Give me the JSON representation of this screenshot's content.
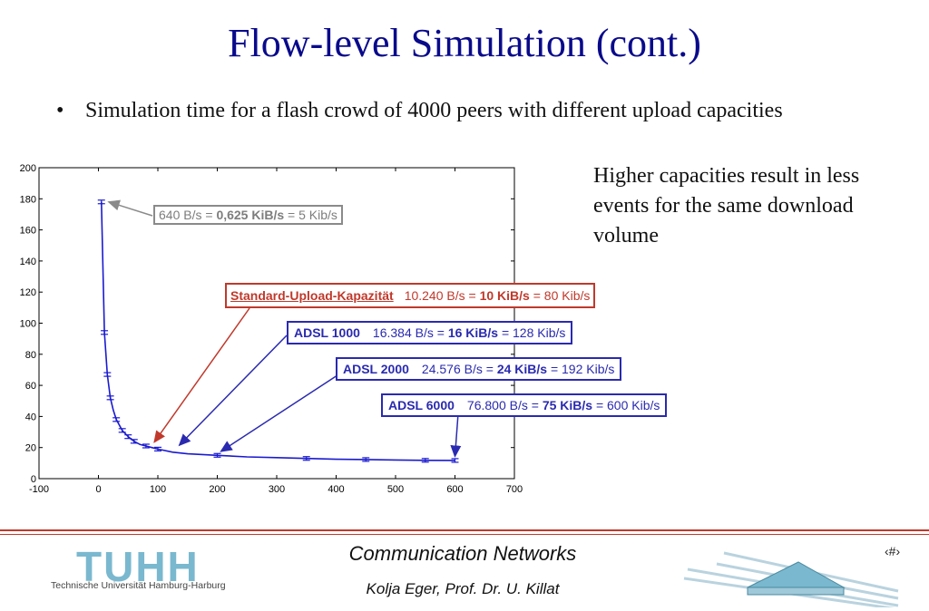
{
  "slide": {
    "title": "Flow-level Simulation (cont.)",
    "bullet_marker": "•",
    "bullet": "Simulation time for a flash crowd of 4000 peers with different upload capacities",
    "note": "Higher capacities result in less events for the same download volume"
  },
  "labels": {
    "l640": {
      "pre": "640 B/s = ",
      "bold": "0,625 KiB/s",
      "post": " = 5 Kib/s"
    },
    "std": {
      "name": "Standard-Upload-Kapazität",
      "pre": "10.240 B/s = ",
      "bold": "10 KiB/s",
      "post": " = 80 Kib/s"
    },
    "adsl1000": {
      "name": "ADSL 1000",
      "pre": "16.384 B/s = ",
      "bold": "16 KiB/s",
      "post": " = 128 Kib/s"
    },
    "adsl2000": {
      "name": "ADSL 2000",
      "pre": "24.576 B/s = ",
      "bold": "24 KiB/s",
      "post": " = 192 Kib/s"
    },
    "adsl6000": {
      "name": "ADSL 6000",
      "pre": "76.800 B/s = ",
      "bold": "75 KiB/s",
      "post": " = 600 Kib/s"
    }
  },
  "footer": {
    "title": "Communication Networks",
    "subtitle": "Kolja Eger, Prof. Dr. U. Killat",
    "page": "‹#›",
    "logo_text": "TUHH",
    "logo_sub": "Technische Universität Hamburg-Harburg"
  },
  "colors": {
    "title": "#0a0a8c",
    "series": "#1a1ad0",
    "highlight": "#c0392b",
    "label_blue": "#2a2ab0",
    "label_gray": "#7d7d7d"
  },
  "chart_data": {
    "type": "line",
    "xlim": [
      -100,
      700
    ],
    "ylim": [
      0,
      200
    ],
    "xticks": [
      -100,
      0,
      100,
      200,
      300,
      400,
      500,
      600,
      700
    ],
    "yticks": [
      0,
      20,
      40,
      60,
      80,
      100,
      120,
      140,
      160,
      180,
      200
    ],
    "grid": false,
    "series": [
      {
        "x": [
          5,
          10,
          15,
          20,
          25,
          30,
          40,
          50,
          60,
          70,
          80,
          90,
          100,
          125,
          150,
          175,
          200,
          250,
          300,
          350,
          400,
          450,
          500,
          550,
          600
        ],
        "y": [
          178,
          94,
          67,
          52,
          44,
          38,
          31,
          27,
          24,
          22,
          21,
          20,
          19,
          17,
          16,
          15.5,
          15,
          14,
          13.5,
          13,
          12.5,
          12.3,
          12,
          11.8,
          11.7
        ]
      }
    ],
    "error_bars_at_x": [
      5,
      10,
      15,
      20,
      30,
      40,
      50,
      60,
      80,
      100,
      200,
      350,
      450,
      550,
      600
    ],
    "annotations": [
      {
        "label": "l640",
        "x": 5,
        "y": 178
      },
      {
        "label": "std",
        "x": 88,
        "y": 20
      },
      {
        "label": "adsl1000",
        "x": 130,
        "y": 18
      },
      {
        "label": "adsl2000",
        "x": 200,
        "y": 14
      },
      {
        "label": "adsl6000",
        "x": 600,
        "y": 12
      }
    ]
  }
}
